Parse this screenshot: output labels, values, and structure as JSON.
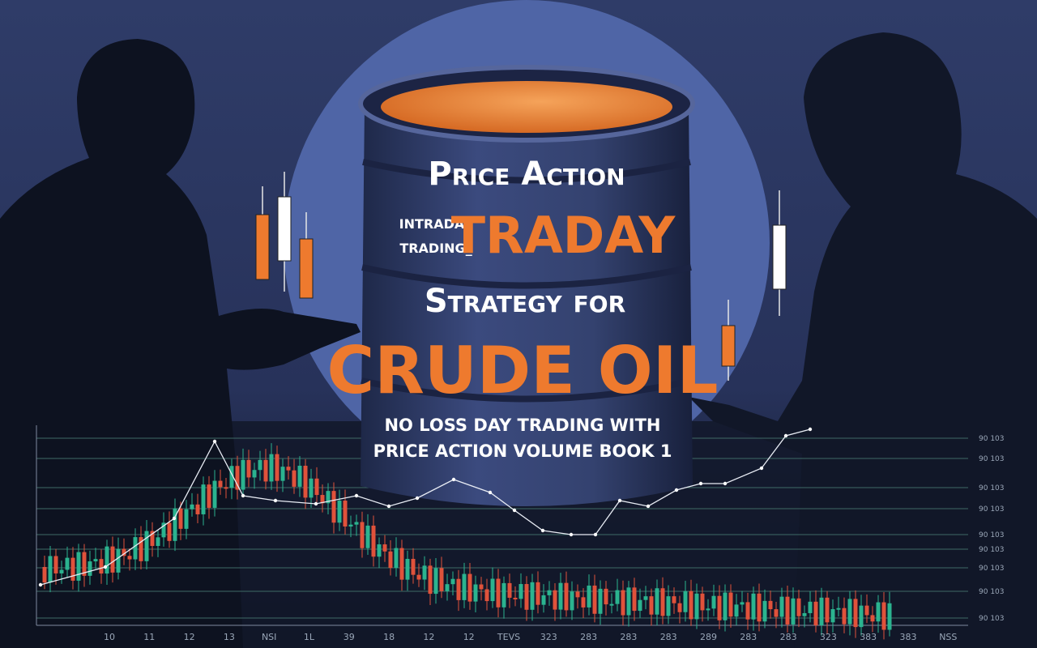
{
  "cover": {
    "title_line1": "Price Action",
    "small_line1": "INTRADAY",
    "small_line2": "TRADING_",
    "title_big": "TRADAY",
    "title_line3": "Strategy for",
    "title_main": "CRUDE OIL",
    "subtitle_line1": "NO LOSS DAY TRADING WITH",
    "subtitle_line2": "PRICE ACTION VOLUME BOOK 1"
  },
  "chart": {
    "x_labels": [
      "10",
      "11",
      "12",
      "13",
      "NSI",
      "1L",
      "39",
      "18",
      "12",
      "12",
      "TEVS",
      "323",
      "283",
      "283",
      "283",
      "289",
      "283",
      "283",
      "323",
      "383",
      "383",
      "NSS"
    ],
    "y_labels": [
      "90 103",
      "90 103",
      "90 103",
      "90 103",
      "90 103",
      "90 103",
      "90 103",
      "90 103",
      "90 103"
    ]
  }
}
